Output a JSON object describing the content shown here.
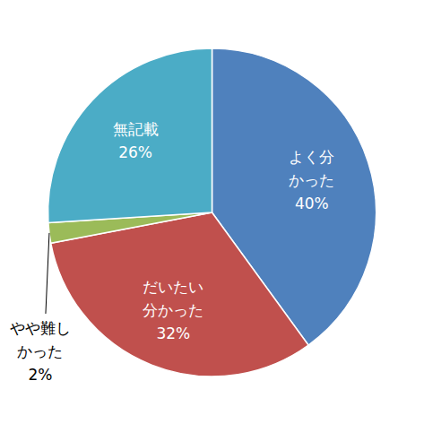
{
  "chart_data": {
    "type": "pie",
    "categories": [
      "よく分かった",
      "だいたい分かった",
      "やや難しかった",
      "無記載"
    ],
    "values": [
      40,
      32,
      2,
      26
    ],
    "value_labels": [
      "40%",
      "32%",
      "2%",
      "26%"
    ],
    "colors": [
      "#4f81bd",
      "#c0504d",
      "#9bbb59",
      "#4bacc6"
    ],
    "data_labels": true
  }
}
